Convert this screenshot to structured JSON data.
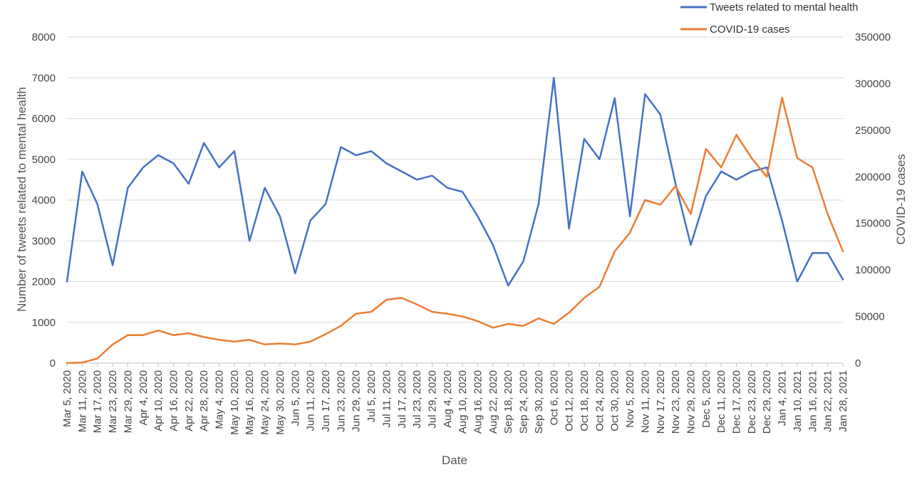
{
  "chart_data": {
    "type": "line",
    "xlabel": "Date",
    "ylabel": "Number of tweets related to mental health",
    "y2label": "COVID-19 cases",
    "ylim": [
      0,
      8000
    ],
    "y2lim": [
      0,
      350000
    ],
    "yticks": [
      "0",
      "1000",
      "2000",
      "3000",
      "4000",
      "5000",
      "6000",
      "7000",
      "8000"
    ],
    "y2ticks": [
      "0",
      "50000",
      "100000",
      "150000",
      "200000",
      "250000",
      "300000",
      "350000"
    ],
    "x_tick_labels": [
      "Mar 5, 2020",
      "Mar 11, 2020",
      "Mar 17, 2020",
      "Mar 23, 2020",
      "Mar 29, 2020",
      "Apr 4, 2020",
      "Apr 10, 2020",
      "Apr 16, 2020",
      "Apr 22, 2020",
      "Apr 28, 2020",
      "May 4, 2020",
      "May 10, 2020",
      "May 16, 2020",
      "May 24, 2020",
      "May 30, 2020",
      "Jun 5, 2020",
      "Jun 11, 2020",
      "Jun 17, 2020",
      "Jun 23, 2020",
      "Jun 29, 2020",
      "Jul 5, 2020",
      "Jul 11, 2020",
      "Jul 17, 2020",
      "Jul 23, 2020",
      "Jul 29, 2020",
      "Aug 4, 2020",
      "Aug 10, 2020",
      "Aug 16, 2020",
      "Aug 22, 2020",
      "Sep 18, 2020",
      "Sep 24, 2020",
      "Sep 30, 2020",
      "Oct 6, 2020",
      "Oct 12, 2020",
      "Oct 18, 2020",
      "Oct 24, 2020",
      "Oct 30, 2020",
      "Nov 5, 2020",
      "Nov 11, 2020",
      "Nov 17, 2020",
      "Nov 23, 2020",
      "Nov 29, 2020",
      "Dec 5, 2020",
      "Dec 11, 2020",
      "Dec 17, 2020",
      "Dec 23, 2020",
      "Dec 29, 2020",
      "Jan 4, 2021",
      "Jan 10, 2021",
      "Jan 16, 2021",
      "Jan 22, 2021",
      "Jan 28, 2021"
    ],
    "legend_position": "top-right",
    "grid": "horizontal",
    "series": [
      {
        "name": "Tweets related to mental health",
        "axis": "left",
        "color": "#4472C4",
        "x": [
          0,
          1,
          2,
          3,
          4,
          5,
          6,
          7,
          8,
          9,
          10,
          11,
          12,
          13,
          14,
          15,
          16,
          17,
          18,
          19,
          20,
          21,
          22,
          23,
          24,
          25,
          26,
          27,
          28,
          29,
          30,
          31,
          32,
          33,
          34,
          35,
          36,
          37,
          38,
          39,
          40,
          41,
          42,
          43,
          44,
          45,
          46,
          47,
          48,
          49,
          50,
          51
        ],
        "values": [
          2000,
          4700,
          3900,
          2400,
          4300,
          4800,
          5100,
          4900,
          4400,
          5400,
          4800,
          5200,
          3000,
          4300,
          3600,
          2200,
          3500,
          3900,
          5300,
          5100,
          5200,
          4900,
          4700,
          4500,
          4600,
          4300,
          4200,
          3600,
          2900,
          1900,
          2500,
          3900,
          7000,
          3300,
          5500,
          5000,
          6500,
          3600,
          6600,
          6100,
          4400,
          2900,
          4100,
          4700,
          4500,
          4700,
          4800,
          3500,
          2000,
          2700,
          2700,
          2050
        ]
      },
      {
        "name": "COVID-19 cases",
        "axis": "right",
        "color": "#ED7D31",
        "x": [
          0,
          1,
          2,
          3,
          4,
          5,
          6,
          7,
          8,
          9,
          10,
          11,
          12,
          13,
          14,
          15,
          16,
          17,
          18,
          19,
          20,
          21,
          22,
          23,
          24,
          25,
          26,
          27,
          28,
          29,
          30,
          31,
          32,
          33,
          34,
          35,
          36,
          37,
          38,
          39,
          40,
          41,
          42,
          43,
          44,
          45,
          46,
          47,
          48,
          49,
          50,
          51
        ],
        "values": [
          100,
          500,
          5000,
          20000,
          30000,
          30000,
          35000,
          30000,
          32000,
          28000,
          25000,
          23000,
          25000,
          20000,
          21000,
          20000,
          23000,
          31000,
          40000,
          53000,
          55000,
          68000,
          70000,
          63000,
          55000,
          53000,
          50000,
          45000,
          38000,
          42000,
          40000,
          48000,
          42000,
          54000,
          70000,
          82000,
          120000,
          140000,
          175000,
          170000,
          190000,
          160000,
          230000,
          210000,
          245000,
          220000,
          200000,
          285000,
          220000,
          210000,
          160000,
          120000
        ]
      }
    ]
  }
}
